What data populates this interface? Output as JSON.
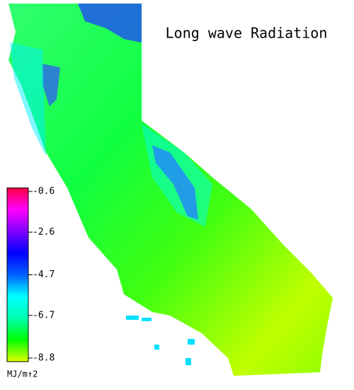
{
  "title": "Long wave Radiation",
  "colorbar": {
    "label": "MJ/m↑2",
    "range": [
      -8.8,
      -0.6
    ],
    "ticks": [
      -0.6,
      -2.6,
      -4.7,
      -6.7,
      -8.8
    ],
    "colors": [
      "#e0ff00",
      "#00ff00",
      "#00ffb0",
      "#00ffff",
      "#0060ff",
      "#0000ff",
      "#8000ff",
      "#ff00ff",
      "#ff0040"
    ]
  }
}
